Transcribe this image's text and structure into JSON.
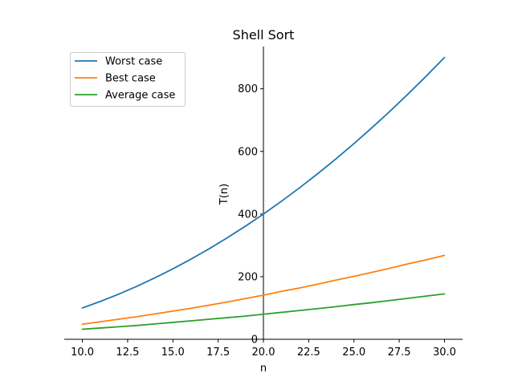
{
  "chart_data": {
    "type": "line",
    "title": "Shell Sort",
    "xlabel": "n",
    "ylabel": "T(n)",
    "xlim": [
      9.0,
      31.0
    ],
    "ylim": [
      0,
      935
    ],
    "xticks": [
      10.0,
      12.5,
      15.0,
      17.5,
      20.0,
      22.5,
      25.0,
      27.5,
      30.0
    ],
    "xtick_labels": [
      "10.0",
      "12.5",
      "15.0",
      "17.5",
      "20.0",
      "22.5",
      "25.0",
      "27.5",
      "30.0"
    ],
    "yticks": [
      0,
      200,
      400,
      600,
      800
    ],
    "ytick_labels": [
      "0",
      "200",
      "400",
      "600",
      "800"
    ],
    "grid": false,
    "legend_position": "top-left",
    "x": [
      10,
      11,
      12,
      13,
      14,
      15,
      16,
      17,
      18,
      19,
      20,
      21,
      22,
      23,
      24,
      25,
      26,
      27,
      28,
      29,
      30
    ],
    "series": [
      {
        "name": "Worst case",
        "color": "#1f77b4",
        "values": [
          100,
          121,
          144,
          169,
          196,
          225,
          256,
          289,
          324,
          361,
          400,
          441,
          484,
          529,
          576,
          625,
          676,
          729,
          784,
          841,
          900
        ]
      },
      {
        "name": "Best case",
        "color": "#ff7f0e",
        "values": [
          48,
          56,
          64,
          72,
          81,
          90,
          99,
          109,
          119,
          130,
          141,
          153,
          164,
          176,
          189,
          201,
          214,
          227,
          241,
          254,
          268
        ]
      },
      {
        "name": "Average case",
        "color": "#2ca02c",
        "values": [
          32,
          36,
          40,
          44,
          49,
          54,
          59,
          64,
          69,
          74,
          80,
          86,
          92,
          98,
          104,
          111,
          117,
          124,
          131,
          138,
          145
        ]
      }
    ]
  }
}
